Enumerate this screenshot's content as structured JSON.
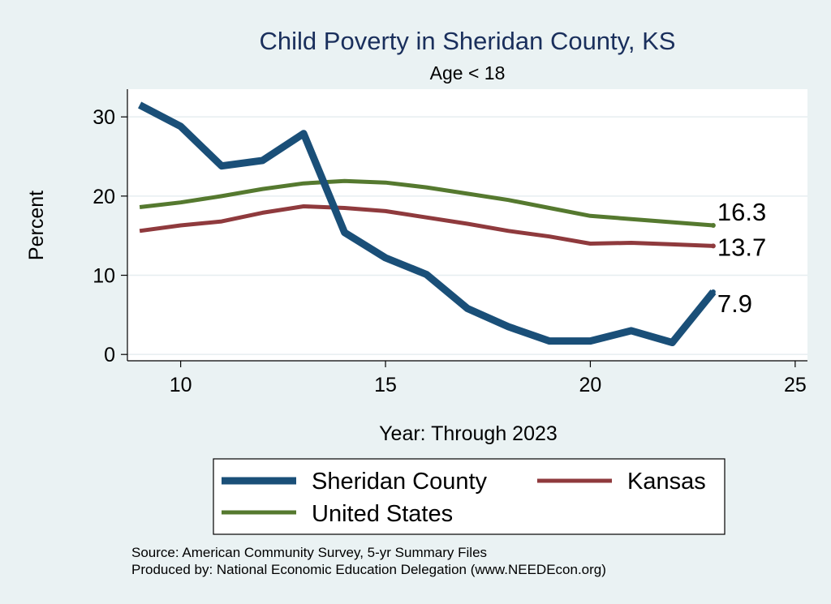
{
  "chart_data": {
    "type": "line",
    "title": "Child Poverty in Sheridan County, KS",
    "subtitle": "Age < 18",
    "xlabel": "Year: Through 2023",
    "ylabel": "Percent",
    "xlim": [
      8.7,
      25.3
    ],
    "ylim": [
      -0.8,
      33.5
    ],
    "xticks": [
      10,
      15,
      20,
      25
    ],
    "yticks": [
      0,
      10,
      20,
      30
    ],
    "grid": true,
    "legend_position": "bottom",
    "x": [
      9,
      10,
      11,
      12,
      13,
      14,
      15,
      16,
      17,
      18,
      19,
      20,
      21,
      22,
      23
    ],
    "series": [
      {
        "name": "Sheridan County",
        "color": "#1a4f78",
        "values": [
          31.5,
          28.8,
          23.8,
          24.5,
          27.9,
          15.4,
          12.2,
          10.1,
          5.8,
          3.5,
          1.7,
          1.7,
          3.0,
          1.5,
          7.9
        ],
        "end_label": "7.9"
      },
      {
        "name": "Kansas",
        "color": "#8f3a3d",
        "values": [
          15.6,
          16.3,
          16.8,
          17.9,
          18.7,
          18.5,
          18.1,
          17.3,
          16.5,
          15.6,
          14.9,
          14.0,
          14.1,
          13.9,
          13.7
        ],
        "end_label": "13.7"
      },
      {
        "name": "United States",
        "color": "#55792f",
        "values": [
          18.6,
          19.2,
          20.0,
          20.9,
          21.6,
          21.9,
          21.7,
          21.1,
          20.3,
          19.5,
          18.5,
          17.5,
          17.1,
          16.7,
          16.3
        ],
        "end_label": "16.3"
      }
    ],
    "notes": [
      "Source: American Community Survey, 5-yr Summary Files",
      "Produced by: National Economic Education Delegation (www.NEEDEcon.org)"
    ]
  }
}
